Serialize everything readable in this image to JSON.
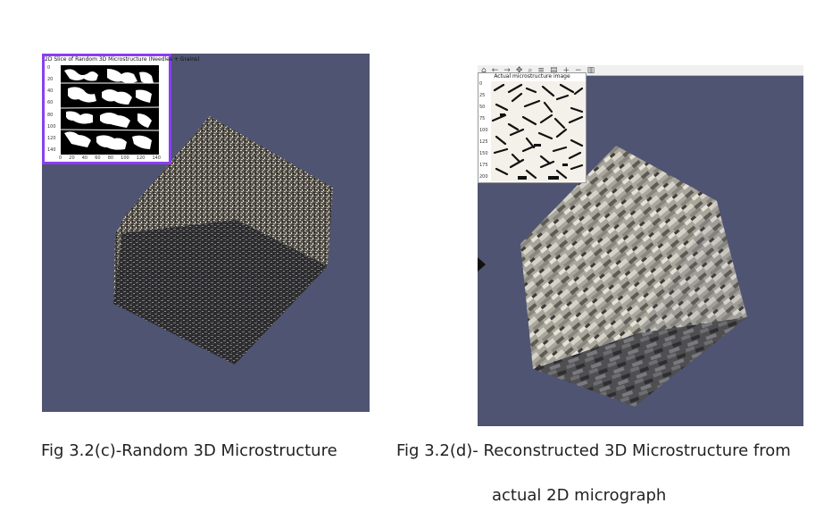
{
  "figure_left": {
    "inset_title": "2D Slice of Random 3D Microstructure (Needles + Grains)",
    "y_ticks": [
      "0",
      "20",
      "40",
      "60",
      "80",
      "100",
      "120",
      "140"
    ],
    "x_ticks": [
      "0",
      "20",
      "40",
      "60",
      "80",
      "100",
      "120",
      "140"
    ],
    "caption": "Fig 3.2(c)-Random 3D Microstructure"
  },
  "figure_right": {
    "inset_title": "Actual microstructure image",
    "y_ticks": [
      "0",
      "25",
      "50",
      "75",
      "100",
      "125",
      "150",
      "175",
      "200"
    ],
    "toolbar_icons": [
      "home-icon",
      "back-icon",
      "forward-icon",
      "pan-icon",
      "zoom-icon",
      "config-icon",
      "save-icon",
      "plus-icon",
      "minus-icon",
      "trash-icon"
    ],
    "caption_line1": "Fig 3.2(d)- Reconstructed 3D Microstructure from",
    "caption_line2": "actual 2D micrograph"
  },
  "colors": {
    "viewport_bg": "#4f5472",
    "inset_border_left": "#8a3ff0"
  }
}
